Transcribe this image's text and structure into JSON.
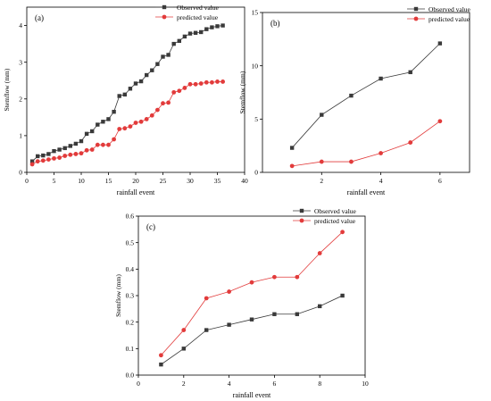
{
  "chart_data": [
    {
      "type": "line",
      "panel_label": "(a)",
      "xlabel": "rainfall event",
      "ylabel": "Stemflow (mm)",
      "xlim": [
        0,
        40
      ],
      "ylim": [
        0,
        4.5
      ],
      "xticks": [
        0,
        5,
        10,
        15,
        20,
        25,
        30,
        35,
        40
      ],
      "yticks": [
        0,
        1,
        2,
        3,
        4
      ],
      "legend": "top-right",
      "grid": false,
      "series": [
        {
          "name": "Observed value",
          "color": "#3a3a3a",
          "marker": "square",
          "x": [
            1,
            2,
            3,
            4,
            5,
            6,
            7,
            8,
            9,
            10,
            11,
            12,
            13,
            14,
            15,
            16,
            17,
            18,
            19,
            20,
            21,
            22,
            23,
            24,
            25,
            26,
            27,
            28,
            29,
            30,
            31,
            32,
            33,
            34,
            35,
            36
          ],
          "y": [
            0.3,
            0.44,
            0.46,
            0.5,
            0.58,
            0.62,
            0.66,
            0.72,
            0.78,
            0.85,
            1.05,
            1.12,
            1.3,
            1.38,
            1.45,
            1.65,
            2.08,
            2.12,
            2.28,
            2.42,
            2.48,
            2.65,
            2.78,
            2.95,
            3.15,
            3.2,
            3.5,
            3.58,
            3.7,
            3.78,
            3.8,
            3.82,
            3.9,
            3.95,
            3.98,
            4.0
          ]
        },
        {
          "name": "predicted value",
          "color": "#e23b3b",
          "marker": "circle",
          "x": [
            1,
            2,
            3,
            4,
            5,
            6,
            7,
            8,
            9,
            10,
            11,
            12,
            13,
            14,
            15,
            16,
            17,
            18,
            19,
            20,
            21,
            22,
            23,
            24,
            25,
            26,
            27,
            28,
            29,
            30,
            31,
            32,
            33,
            34,
            35,
            36
          ],
          "y": [
            0.22,
            0.3,
            0.32,
            0.35,
            0.38,
            0.4,
            0.45,
            0.48,
            0.5,
            0.52,
            0.6,
            0.62,
            0.75,
            0.75,
            0.75,
            0.9,
            1.18,
            1.2,
            1.25,
            1.35,
            1.38,
            1.45,
            1.55,
            1.7,
            1.88,
            1.9,
            2.18,
            2.22,
            2.3,
            2.4,
            2.4,
            2.42,
            2.45,
            2.45,
            2.47,
            2.47
          ]
        }
      ]
    },
    {
      "type": "line",
      "panel_label": "(b)",
      "xlabel": "rainfall event",
      "ylabel": "Stemflow (mm)",
      "xlim": [
        0,
        7
      ],
      "ylim": [
        0,
        15
      ],
      "xticks": [
        2,
        4,
        6
      ],
      "yticks": [
        0,
        5,
        10,
        15
      ],
      "legend": "top-right",
      "grid": false,
      "series": [
        {
          "name": "Observed value",
          "color": "#3a3a3a",
          "marker": "square",
          "x": [
            1,
            2,
            3,
            4,
            5,
            6
          ],
          "y": [
            2.3,
            5.4,
            7.2,
            8.8,
            9.4,
            12.1
          ]
        },
        {
          "name": "predicted value",
          "color": "#e23b3b",
          "marker": "circle",
          "x": [
            1,
            2,
            3,
            4,
            5,
            6
          ],
          "y": [
            0.6,
            1.0,
            1.0,
            1.8,
            2.8,
            4.8
          ]
        }
      ]
    },
    {
      "type": "line",
      "panel_label": "(c)",
      "xlabel": "rainfall event",
      "ylabel": "Stemflow (mm)",
      "xlim": [
        0,
        10
      ],
      "ylim": [
        0,
        0.6
      ],
      "xticks": [
        0,
        2,
        4,
        6,
        8,
        10
      ],
      "yticks": [
        0.0,
        0.1,
        0.2,
        0.3,
        0.4,
        0.5,
        0.6
      ],
      "ytick_labels": [
        "0.0",
        "0.1",
        "0.2",
        "0.3",
        "0.4",
        "0.5",
        "0.6"
      ],
      "legend": "top-right",
      "grid": false,
      "series": [
        {
          "name": "Observed value",
          "color": "#3a3a3a",
          "marker": "square",
          "x": [
            1,
            2,
            3,
            4,
            5,
            6,
            7,
            8,
            9
          ],
          "y": [
            0.04,
            0.1,
            0.17,
            0.19,
            0.21,
            0.23,
            0.23,
            0.26,
            0.3
          ]
        },
        {
          "name": "predicted value",
          "color": "#e23b3b",
          "marker": "circle",
          "x": [
            1,
            2,
            3,
            4,
            5,
            6,
            7,
            8,
            9
          ],
          "y": [
            0.075,
            0.17,
            0.29,
            0.315,
            0.35,
            0.37,
            0.37,
            0.46,
            0.54
          ]
        }
      ]
    }
  ]
}
